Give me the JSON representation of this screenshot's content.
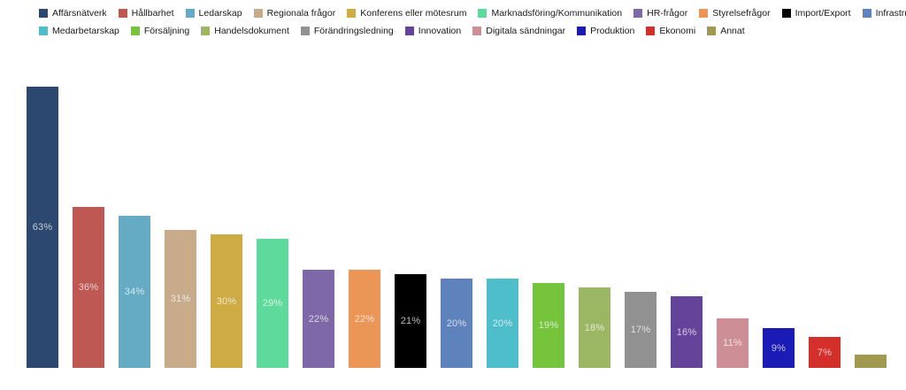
{
  "chart_data": {
    "type": "bar",
    "title": "",
    "xlabel": "",
    "ylabel": "",
    "ylim": [
      0,
      65
    ],
    "grid": false,
    "legend_position": "top",
    "value_suffix": "%",
    "categories": [
      "Affärsnätverk",
      "Hållbarhet",
      "Ledarskap",
      "Regionala frågor",
      "Konferens eller mötesrum",
      "Marknadsföring/Kommunikation",
      "HR-frågor",
      "Styrelsefrågor",
      "Import/Export",
      "Infrastruktur",
      "Medarbetarskap",
      "Försäljning",
      "Handelsdokument",
      "Förändringsledning",
      "Innovation",
      "Digitala sändningar",
      "Produktion",
      "Ekonomi",
      "Annat"
    ],
    "values": [
      63,
      36,
      34,
      31,
      30,
      29,
      22,
      22,
      21,
      20,
      20,
      19,
      18,
      17,
      16,
      11,
      9,
      7,
      3
    ],
    "labels": [
      "63%",
      "36%",
      "34%",
      "31%",
      "30%",
      "29%",
      "22%",
      "22%",
      "21%",
      "20%",
      "20%",
      "19%",
      "18%",
      "17%",
      "16%",
      "11%",
      "9%",
      "7%",
      ""
    ],
    "colors": [
      "#2c4770",
      "#bd5853",
      "#65abc4",
      "#c7ab8a",
      "#cfab43",
      "#5eda9c",
      "#7e68a8",
      "#eb9656",
      "#000000",
      "#5e82bb",
      "#4dbeca",
      "#75c43c",
      "#9bb763",
      "#919191",
      "#66439b",
      "#cd8f95",
      "#1b1cb5",
      "#d4302b",
      "#a1994f"
    ],
    "bar_label_color": "#ffffff",
    "background_color": "#ffffff",
    "legend_text_color": "#1a1a1a"
  }
}
